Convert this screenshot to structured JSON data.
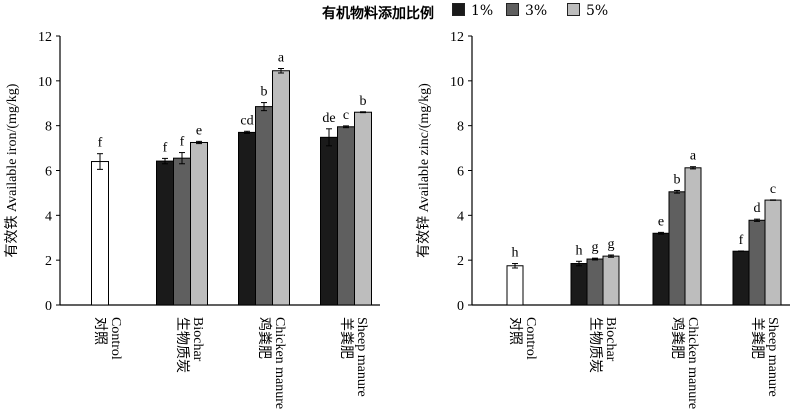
{
  "legend": {
    "title": "有机物料添加比例",
    "items": [
      {
        "label": "1%",
        "color": "#1a1a1a"
      },
      {
        "label": "3%",
        "color": "#5f5f5f"
      },
      {
        "label": "5%",
        "color": "#bdbdbd"
      }
    ]
  },
  "chart_data": [
    {
      "type": "bar",
      "ylabel": "有效铁 Available iron/(mg/kg)",
      "ylim": [
        0,
        12
      ],
      "yticks": [
        "0",
        "2",
        "4",
        "6",
        "8",
        "10",
        "12"
      ],
      "categories": [
        {
          "zh": "对照",
          "en": "Control"
        },
        {
          "zh": "生物质炭",
          "en": "Biochar"
        },
        {
          "zh": "鸡粪肥",
          "en": "Chicken manure"
        },
        {
          "zh": "羊粪肥",
          "en": "Sheep manure"
        }
      ],
      "control": {
        "value": 6.4,
        "err": 0.35,
        "letter": "f"
      },
      "series": [
        {
          "name": "1%",
          "values": [
            null,
            6.42,
            7.7,
            7.48
          ],
          "errors": [
            null,
            0.12,
            0.05,
            0.38
          ],
          "letters": [
            null,
            "f",
            "cd",
            "de"
          ]
        },
        {
          "name": "3%",
          "values": [
            null,
            6.55,
            8.85,
            7.95
          ],
          "errors": [
            null,
            0.25,
            0.18,
            0.04
          ],
          "letters": [
            null,
            "f",
            "b",
            "c"
          ]
        },
        {
          "name": "5%",
          "values": [
            null,
            7.25,
            10.45,
            8.6
          ],
          "errors": [
            null,
            0.05,
            0.1,
            0.02
          ],
          "letters": [
            null,
            "e",
            "a",
            "b"
          ]
        }
      ]
    },
    {
      "type": "bar",
      "ylabel": "有效锌 Available zinc/(mg/kg)",
      "ylim": [
        0,
        12
      ],
      "yticks": [
        "0",
        "2",
        "4",
        "6",
        "8",
        "10",
        "12"
      ],
      "categories": [
        {
          "zh": "对照",
          "en": "Control"
        },
        {
          "zh": "生物质炭",
          "en": "Biochar"
        },
        {
          "zh": "鸡粪肥",
          "en": "Chicken manure"
        },
        {
          "zh": "羊粪肥",
          "en": "Sheep manure"
        }
      ],
      "control": {
        "value": 1.75,
        "err": 0.1,
        "letter": "h"
      },
      "series": [
        {
          "name": "1%",
          "values": [
            null,
            1.85,
            3.2,
            2.4
          ],
          "errors": [
            null,
            0.1,
            0.04,
            0.01
          ],
          "letters": [
            null,
            "h",
            "e",
            "f"
          ]
        },
        {
          "name": "3%",
          "values": [
            null,
            2.05,
            5.05,
            3.78
          ],
          "errors": [
            null,
            0.04,
            0.06,
            0.05
          ],
          "letters": [
            null,
            "g",
            "b",
            "d"
          ]
        },
        {
          "name": "5%",
          "values": [
            null,
            2.18,
            6.12,
            4.68
          ],
          "errors": [
            null,
            0.05,
            0.05,
            0.01
          ],
          "letters": [
            null,
            "g",
            "a",
            "c"
          ]
        }
      ]
    }
  ]
}
